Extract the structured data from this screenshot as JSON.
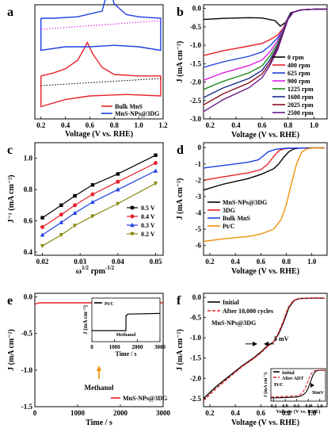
{
  "figure": {
    "panel_letters": [
      "a",
      "b",
      "c",
      "d",
      "e",
      "f"
    ]
  },
  "chart_data": [
    {
      "panel": "a",
      "type": "line",
      "xlabel": "Voltage (V vs. RHE)",
      "ylabel": "",
      "xlim": [
        0.15,
        1.2
      ],
      "xticks": [
        "0.2",
        "0.4",
        "0.6",
        "0.8",
        "1.0",
        "1.2"
      ],
      "legend_position": "lower-right",
      "series": [
        {
          "name": "Bulk MnS",
          "color": "#e8202a",
          "x": [
            0.2,
            0.3,
            0.4,
            0.5,
            0.55,
            0.58,
            0.62,
            0.7,
            0.8,
            1.0,
            1.18,
            1.18,
            0.9,
            0.6,
            0.4,
            0.2
          ],
          "y": [
            0.08,
            0.12,
            0.18,
            0.3,
            0.45,
            0.55,
            0.4,
            0.2,
            0.1,
            0.08,
            0.08,
            -0.2,
            -0.18,
            -0.2,
            -0.25,
            -0.35
          ]
        },
        {
          "name": "MnS-NPs@3DG",
          "color": "#1f3fe0",
          "x": [
            0.2,
            0.3,
            0.5,
            0.7,
            0.74,
            0.76,
            0.8,
            0.9,
            1.0,
            1.18,
            1.18,
            1.0,
            0.8,
            0.6,
            0.4,
            0.2
          ],
          "y": [
            0.1,
            0.1,
            0.12,
            0.2,
            0.45,
            0.55,
            0.3,
            0.15,
            0.12,
            0.1,
            -0.35,
            -0.3,
            -0.28,
            -0.3,
            -0.3,
            -0.35
          ]
        }
      ]
    },
    {
      "panel": "b",
      "type": "line",
      "xlabel": "Voltage (V vs. RHE)",
      "ylabel": "J (mA cm⁻²)",
      "xlim": [
        0.15,
        1.1
      ],
      "ylim": [
        -3.0,
        0.1
      ],
      "xticks": [
        "0.2",
        "0.4",
        "0.6",
        "0.8",
        "1.0"
      ],
      "yticks": [
        "0.0",
        "-0.5",
        "-1.0",
        "-1.5",
        "-2.0",
        "-2.5",
        "-3.0"
      ],
      "legend_position": "lower-right",
      "series": [
        {
          "name": "0 rpm",
          "color": "#000000",
          "x": [
            0.15,
            0.3,
            0.5,
            0.6,
            0.7,
            0.74,
            0.78,
            0.82,
            0.9,
            1.0,
            1.1
          ],
          "y": [
            -0.3,
            -0.27,
            -0.25,
            -0.26,
            -0.33,
            -0.48,
            -0.38,
            -0.12,
            -0.04,
            -0.02,
            -0.02
          ]
        },
        {
          "name": "400 rpm",
          "color": "#e8202a",
          "x": [
            0.15,
            0.3,
            0.5,
            0.6,
            0.66,
            0.72,
            0.76,
            0.8,
            0.84,
            0.9,
            1.0,
            1.1
          ],
          "y": [
            -1.28,
            -1.15,
            -1.02,
            -0.95,
            -0.85,
            -0.72,
            -0.55,
            -0.25,
            -0.1,
            -0.04,
            -0.02,
            -0.02
          ]
        },
        {
          "name": "625 rpm",
          "color": "#1f3fe0",
          "x": [
            0.15,
            0.3,
            0.5,
            0.6,
            0.66,
            0.72,
            0.76,
            0.8,
            0.84,
            0.9,
            1.0,
            1.1
          ],
          "y": [
            -1.6,
            -1.45,
            -1.3,
            -1.18,
            -1.02,
            -0.8,
            -0.58,
            -0.25,
            -0.1,
            -0.04,
            -0.02,
            -0.02
          ]
        },
        {
          "name": "900 rpm",
          "color": "#e020e0",
          "x": [
            0.15,
            0.3,
            0.5,
            0.6,
            0.66,
            0.72,
            0.76,
            0.8,
            0.84,
            0.9,
            1.0,
            1.1
          ],
          "y": [
            -1.95,
            -1.75,
            -1.55,
            -1.4,
            -1.18,
            -0.88,
            -0.6,
            -0.26,
            -0.1,
            -0.04,
            -0.02,
            -0.02
          ]
        },
        {
          "name": "1225 rpm",
          "color": "#1a8a1a",
          "x": [
            0.15,
            0.3,
            0.5,
            0.6,
            0.66,
            0.72,
            0.76,
            0.8,
            0.84,
            0.9,
            1.0,
            1.1
          ],
          "y": [
            -2.2,
            -1.98,
            -1.75,
            -1.56,
            -1.3,
            -0.95,
            -0.63,
            -0.27,
            -0.1,
            -0.04,
            -0.02,
            -0.02
          ]
        },
        {
          "name": "1600 rpm",
          "color": "#1a2a8a",
          "x": [
            0.15,
            0.3,
            0.5,
            0.6,
            0.66,
            0.72,
            0.76,
            0.8,
            0.84,
            0.9,
            1.0,
            1.1
          ],
          "y": [
            -2.42,
            -2.16,
            -1.9,
            -1.68,
            -1.4,
            -1.02,
            -0.66,
            -0.28,
            -0.1,
            -0.04,
            -0.02,
            -0.02
          ]
        },
        {
          "name": "2025 rpm",
          "color": "#8a1020",
          "x": [
            0.15,
            0.3,
            0.5,
            0.6,
            0.66,
            0.72,
            0.76,
            0.8,
            0.84,
            0.9,
            1.0,
            1.1
          ],
          "y": [
            -2.62,
            -2.32,
            -2.02,
            -1.78,
            -1.48,
            -1.07,
            -0.68,
            -0.29,
            -0.1,
            -0.04,
            -0.02,
            -0.02
          ]
        },
        {
          "name": "2500 rpm",
          "color": "#6a1a8a",
          "x": [
            0.15,
            0.3,
            0.5,
            0.6,
            0.66,
            0.72,
            0.76,
            0.8,
            0.84,
            0.9,
            1.0,
            1.1
          ],
          "y": [
            -2.8,
            -2.48,
            -2.15,
            -1.88,
            -1.55,
            -1.12,
            -0.7,
            -0.3,
            -0.1,
            -0.04,
            -0.02,
            -0.02
          ]
        }
      ],
      "labels": [
        "0 rpm",
        "400 rpm",
        "625 rpm",
        "900 rpm",
        "1225 rpm",
        "1600 rpm",
        "2025 rpm",
        "2500 rpm"
      ]
    },
    {
      "panel": "c",
      "type": "scatter",
      "xlabel": "ω¹ᐟ² rpm⁻¹ᐟ²",
      "xlabel_parts": [
        "ω",
        "1/2",
        " rpm",
        "-1/2"
      ],
      "ylabel": "J⁻¹ (mA cm⁻²)",
      "xlim": [
        0.018,
        0.052
      ],
      "ylim": [
        0.38,
        1.1
      ],
      "xticks": [
        "0.02",
        "0.03",
        "0.04",
        "0.05"
      ],
      "yticks": [
        "0.4",
        "0.6",
        "0.8",
        "1.0"
      ],
      "legend_position": "lower-right",
      "x": [
        0.02,
        0.025,
        0.0286,
        0.0333,
        0.04,
        0.05
      ],
      "series": [
        {
          "name": "0.5 V",
          "color": "#000000",
          "marker": "square",
          "values": [
            0.62,
            0.7,
            0.76,
            0.83,
            0.9,
            1.02
          ]
        },
        {
          "name": "0.4 V",
          "color": "#e8202a",
          "marker": "circle",
          "values": [
            0.56,
            0.64,
            0.7,
            0.77,
            0.85,
            0.97
          ]
        },
        {
          "name": "0.3 V",
          "color": "#1f3fe0",
          "marker": "triangle",
          "values": [
            0.51,
            0.59,
            0.65,
            0.72,
            0.8,
            0.92
          ]
        },
        {
          "name": "0.2 V",
          "color": "#8a8a10",
          "marker": "triangle-down",
          "values": [
            0.44,
            0.51,
            0.57,
            0.63,
            0.71,
            0.84
          ]
        }
      ]
    },
    {
      "panel": "d",
      "type": "line",
      "xlabel": "Voltage (V vs. RHE)",
      "ylabel": "J (mA cm⁻²)",
      "xlim": [
        0.15,
        1.12
      ],
      "ylim": [
        -6.6,
        0.3
      ],
      "xticks": [
        "0.2",
        "0.4",
        "0.6",
        "0.8",
        "1.0"
      ],
      "yticks": [
        "0",
        "-1",
        "-2",
        "-3",
        "-4",
        "-5",
        "-6"
      ],
      "legend_position": "middle-left",
      "series": [
        {
          "name": "MnS-NPs@3DG",
          "color": "#000000",
          "x": [
            0.15,
            0.3,
            0.5,
            0.6,
            0.7,
            0.74,
            0.78,
            0.82,
            0.86,
            0.9,
            1.0,
            1.1
          ],
          "y": [
            -2.6,
            -2.25,
            -1.9,
            -1.65,
            -1.3,
            -1.0,
            -0.6,
            -0.25,
            -0.08,
            -0.03,
            -0.02,
            -0.02
          ]
        },
        {
          "name": "3DG",
          "color": "#e8202a",
          "x": [
            0.15,
            0.3,
            0.5,
            0.6,
            0.65,
            0.7,
            0.74,
            0.78,
            0.85,
            1.0,
            1.1
          ],
          "y": [
            -2.0,
            -1.8,
            -1.55,
            -1.35,
            -1.05,
            -0.55,
            -0.2,
            -0.08,
            -0.03,
            -0.02,
            -0.02
          ]
        },
        {
          "name": "Bulk MnS",
          "color": "#1f3fe0",
          "x": [
            0.15,
            0.3,
            0.5,
            0.58,
            0.62,
            0.66,
            0.72,
            0.8,
            1.0,
            1.1
          ],
          "y": [
            -1.25,
            -1.1,
            -0.9,
            -0.75,
            -0.5,
            -0.25,
            -0.1,
            -0.04,
            -0.02,
            -0.02
          ]
        },
        {
          "name": "Pt/C",
          "color": "#f0900a",
          "x": [
            0.15,
            0.3,
            0.5,
            0.6,
            0.7,
            0.76,
            0.8,
            0.84,
            0.88,
            0.92,
            0.96,
            1.0,
            1.1
          ],
          "y": [
            -5.75,
            -5.6,
            -5.45,
            -5.3,
            -5.0,
            -4.4,
            -3.5,
            -2.2,
            -1.0,
            -0.3,
            -0.08,
            -0.03,
            -0.02
          ]
        }
      ]
    },
    {
      "panel": "e",
      "type": "line",
      "xlabel": "Time / s",
      "ylabel": "J (mA cm⁻²)",
      "xlim": [
        0,
        3000
      ],
      "ylim": [
        -1.5,
        0.05
      ],
      "xticks": [
        "0",
        "1000",
        "2000",
        "3000"
      ],
      "yticks": [
        "0.0",
        "-0.5",
        "-1.0",
        "-1.5"
      ],
      "annotation": "Methanol",
      "legend_position": "lower-right",
      "series": [
        {
          "name": "MnS-NPs@3DG",
          "color": "#e8202a",
          "x": [
            0,
            100,
            1500,
            1510,
            3000
          ],
          "y": [
            -0.1,
            -0.08,
            -0.08,
            -0.09,
            -0.08
          ]
        }
      ],
      "inset": {
        "type": "line",
        "xlabel": "Time / s",
        "ylabel": "J (mA cm⁻²)",
        "xlim": [
          0,
          3000
        ],
        "ylim": [
          -1.0,
          0.5
        ],
        "xticks": [
          "0",
          "1000",
          "2000",
          "3000"
        ],
        "annotation": "Methanol",
        "legend_position": "top-left",
        "series": [
          {
            "name": "Pt/C",
            "color": "#000000",
            "x": [
              0,
              50,
              1500,
              1505,
              1600,
              3000
            ],
            "y": [
              -0.6,
              -0.62,
              -0.62,
              -0.1,
              -0.05,
              -0.03
            ]
          }
        ]
      }
    },
    {
      "panel": "f",
      "type": "line",
      "xlabel": "Voltage (V vs. RHE)",
      "ylabel": "J (mA cm⁻²)",
      "xlim": [
        0.15,
        1.12
      ],
      "ylim": [
        -2.7,
        0.1
      ],
      "xticks": [
        "0.2",
        "0.4",
        "0.6",
        "0.8",
        "1.0"
      ],
      "yticks": [
        "0.0",
        "-0.5",
        "-1.0",
        "-1.5",
        "-2.0",
        "-2.5"
      ],
      "caption": "MnS-NPs@3DG",
      "annotation": "5 mV",
      "legend_position": "top-left",
      "series": [
        {
          "name": "Initial",
          "color": "#000000",
          "style": "solid",
          "x": [
            0.15,
            0.25,
            0.35,
            0.45,
            0.55,
            0.6,
            0.65,
            0.7,
            0.74,
            0.78,
            0.82,
            0.86,
            0.9,
            1.0,
            1.1
          ],
          "y": [
            -2.5,
            -2.2,
            -1.95,
            -1.7,
            -1.48,
            -1.35,
            -1.2,
            -1.1,
            -0.9,
            -0.6,
            -0.25,
            -0.08,
            -0.03,
            -0.02,
            -0.02
          ]
        },
        {
          "name": "After 10,000 cycles",
          "color": "#e8202a",
          "style": "dashed",
          "x": [
            0.15,
            0.25,
            0.35,
            0.45,
            0.55,
            0.6,
            0.65,
            0.7,
            0.735,
            0.775,
            0.815,
            0.855,
            0.9,
            1.0,
            1.1
          ],
          "y": [
            -2.55,
            -2.25,
            -1.98,
            -1.72,
            -1.5,
            -1.37,
            -1.22,
            -1.1,
            -0.9,
            -0.6,
            -0.25,
            -0.08,
            -0.03,
            -0.02,
            -0.02
          ]
        }
      ],
      "inset": {
        "type": "line",
        "xlabel": "Voltage (V vs. RHE)",
        "ylabel": "J (mA cm⁻²)",
        "xlim": [
          0.15,
          1.1
        ],
        "ylim": [
          -6.0,
          0.3
        ],
        "xticks": [
          "0.2",
          "0.4",
          "0.6",
          "0.8",
          "1.0"
        ],
        "caption": "Pt/C",
        "annotation": "36mV",
        "legend_position": "top-left",
        "series": [
          {
            "name": "Initial",
            "color": "#000000",
            "style": "solid",
            "x": [
              0.15,
              0.4,
              0.6,
              0.7,
              0.76,
              0.8,
              0.84,
              0.88,
              0.92,
              0.96,
              1.0,
              1.1
            ],
            "y": [
              -5.4,
              -5.3,
              -5.2,
              -4.9,
              -4.3,
              -3.5,
              -2.2,
              -1.0,
              -0.3,
              -0.08,
              -0.02,
              -0.02
            ]
          },
          {
            "name": "After ADT",
            "color": "#e8202a",
            "style": "dashed",
            "x": [
              0.15,
              0.4,
              0.6,
              0.68,
              0.72,
              0.76,
              0.8,
              0.84,
              0.88,
              0.92,
              1.0,
              1.1
            ],
            "y": [
              -5.2,
              -5.1,
              -5.0,
              -4.6,
              -4.0,
              -3.2,
              -2.0,
              -0.9,
              -0.3,
              -0.08,
              -0.02,
              -0.02
            ]
          }
        ]
      }
    }
  ]
}
